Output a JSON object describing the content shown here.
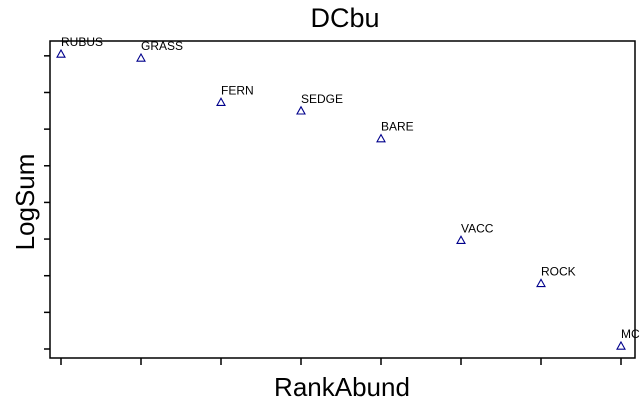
{
  "chart_data": {
    "type": "scatter",
    "title": "DCbu",
    "xlabel": "RankAbund",
    "ylabel": "LogSum",
    "grid": false,
    "marker": "open-triangle",
    "marker_color": "#00008b",
    "x_ticks": [
      1,
      2,
      3,
      4,
      5,
      6,
      7,
      8,
      9
    ],
    "xlim": [
      0.85,
      8.25
    ],
    "points": [
      {
        "label": "RUBUS",
        "x": 1,
        "y": 0.966
      },
      {
        "label": "GRASS",
        "x": 2,
        "y": 0.953
      },
      {
        "label": "FERN",
        "x": 3,
        "y": 0.808
      },
      {
        "label": "SEDGE",
        "x": 4,
        "y": 0.78
      },
      {
        "label": "BARE",
        "x": 5,
        "y": 0.689
      },
      {
        "label": "VACC",
        "x": 6,
        "y": 0.356
      },
      {
        "label": "ROCK",
        "x": 7,
        "y": 0.215
      },
      {
        "label": "MC",
        "x": 8,
        "y": 0.01
      }
    ]
  }
}
